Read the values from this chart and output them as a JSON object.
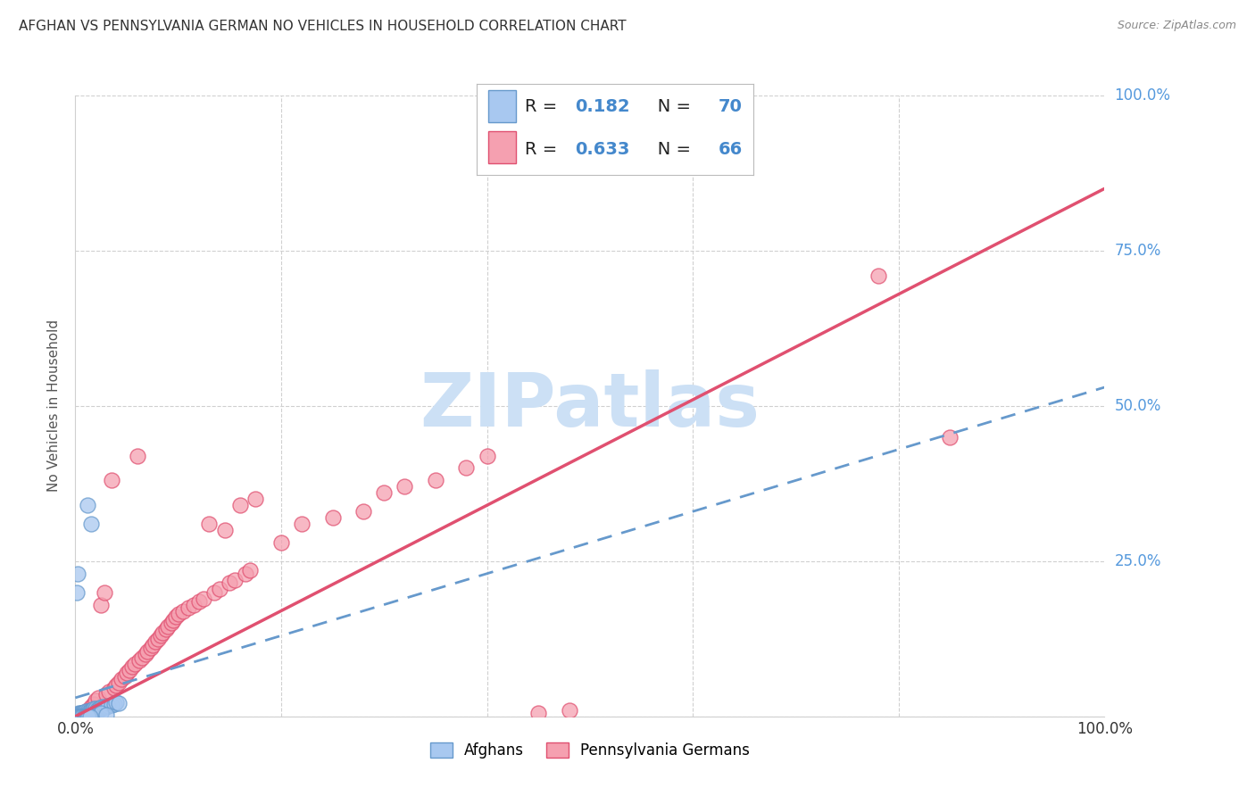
{
  "title": "AFGHAN VS PENNSYLVANIA GERMAN NO VEHICLES IN HOUSEHOLD CORRELATION CHART",
  "source": "Source: ZipAtlas.com",
  "ylabel": "No Vehicles in Household",
  "watermark": "ZIPatlas",
  "legend": {
    "afghan": {
      "R": 0.182,
      "N": 70,
      "color": "#a8c8f0",
      "line_color": "#6699cc"
    },
    "pa_german": {
      "R": 0.633,
      "N": 66,
      "color": "#f5a0b0",
      "line_color": "#e05070"
    }
  },
  "afghan_scatter": [
    [
      0.001,
      0.001
    ],
    [
      0.001,
      0.002
    ],
    [
      0.001,
      0.003
    ],
    [
      0.002,
      0.001
    ],
    [
      0.002,
      0.002
    ],
    [
      0.002,
      0.004
    ],
    [
      0.003,
      0.001
    ],
    [
      0.003,
      0.003
    ],
    [
      0.003,
      0.005
    ],
    [
      0.004,
      0.002
    ],
    [
      0.004,
      0.004
    ],
    [
      0.005,
      0.002
    ],
    [
      0.005,
      0.006
    ],
    [
      0.006,
      0.003
    ],
    [
      0.006,
      0.005
    ],
    [
      0.007,
      0.004
    ],
    [
      0.007,
      0.006
    ],
    [
      0.008,
      0.003
    ],
    [
      0.008,
      0.007
    ],
    [
      0.009,
      0.005
    ],
    [
      0.01,
      0.004
    ],
    [
      0.01,
      0.008
    ],
    [
      0.011,
      0.006
    ],
    [
      0.012,
      0.005
    ],
    [
      0.012,
      0.009
    ],
    [
      0.013,
      0.007
    ],
    [
      0.014,
      0.008
    ],
    [
      0.015,
      0.006
    ],
    [
      0.015,
      0.01
    ],
    [
      0.016,
      0.009
    ],
    [
      0.017,
      0.011
    ],
    [
      0.018,
      0.008
    ],
    [
      0.018,
      0.012
    ],
    [
      0.019,
      0.01
    ],
    [
      0.02,
      0.009
    ],
    [
      0.02,
      0.013
    ],
    [
      0.021,
      0.011
    ],
    [
      0.022,
      0.01
    ],
    [
      0.023,
      0.012
    ],
    [
      0.024,
      0.014
    ],
    [
      0.025,
      0.013
    ],
    [
      0.026,
      0.015
    ],
    [
      0.027,
      0.014
    ],
    [
      0.028,
      0.016
    ],
    [
      0.03,
      0.015
    ],
    [
      0.032,
      0.017
    ],
    [
      0.035,
      0.019
    ],
    [
      0.038,
      0.02
    ],
    [
      0.04,
      0.022
    ],
    [
      0.042,
      0.021
    ],
    [
      0.001,
      0.2
    ],
    [
      0.002,
      0.23
    ],
    [
      0.015,
      0.31
    ],
    [
      0.012,
      0.34
    ],
    [
      0.025,
      0.005
    ],
    [
      0.03,
      0.003
    ],
    [
      0.001,
      0.0
    ],
    [
      0.002,
      0.0
    ],
    [
      0.003,
      0.0
    ],
    [
      0.004,
      0.0
    ],
    [
      0.005,
      0.0
    ],
    [
      0.006,
      0.0
    ],
    [
      0.007,
      0.0
    ],
    [
      0.008,
      0.0
    ],
    [
      0.009,
      0.0
    ],
    [
      0.01,
      0.0
    ],
    [
      0.011,
      0.0
    ],
    [
      0.012,
      0.0
    ],
    [
      0.013,
      0.0
    ],
    [
      0.014,
      0.0
    ]
  ],
  "pa_scatter": [
    [
      0.012,
      0.01
    ],
    [
      0.015,
      0.015
    ],
    [
      0.018,
      0.02
    ],
    [
      0.02,
      0.025
    ],
    [
      0.022,
      0.03
    ],
    [
      0.025,
      0.18
    ],
    [
      0.028,
      0.2
    ],
    [
      0.03,
      0.035
    ],
    [
      0.033,
      0.04
    ],
    [
      0.035,
      0.38
    ],
    [
      0.038,
      0.045
    ],
    [
      0.04,
      0.05
    ],
    [
      0.042,
      0.055
    ],
    [
      0.045,
      0.06
    ],
    [
      0.048,
      0.065
    ],
    [
      0.05,
      0.07
    ],
    [
      0.053,
      0.075
    ],
    [
      0.055,
      0.08
    ],
    [
      0.058,
      0.085
    ],
    [
      0.06,
      0.42
    ],
    [
      0.062,
      0.09
    ],
    [
      0.065,
      0.095
    ],
    [
      0.068,
      0.1
    ],
    [
      0.07,
      0.105
    ],
    [
      0.073,
      0.11
    ],
    [
      0.075,
      0.115
    ],
    [
      0.078,
      0.12
    ],
    [
      0.08,
      0.125
    ],
    [
      0.083,
      0.13
    ],
    [
      0.085,
      0.135
    ],
    [
      0.088,
      0.14
    ],
    [
      0.09,
      0.145
    ],
    [
      0.093,
      0.15
    ],
    [
      0.095,
      0.155
    ],
    [
      0.098,
      0.16
    ],
    [
      0.1,
      0.165
    ],
    [
      0.105,
      0.17
    ],
    [
      0.11,
      0.175
    ],
    [
      0.115,
      0.18
    ],
    [
      0.12,
      0.185
    ],
    [
      0.125,
      0.19
    ],
    [
      0.13,
      0.31
    ],
    [
      0.135,
      0.2
    ],
    [
      0.14,
      0.205
    ],
    [
      0.145,
      0.3
    ],
    [
      0.15,
      0.215
    ],
    [
      0.155,
      0.22
    ],
    [
      0.16,
      0.34
    ],
    [
      0.165,
      0.23
    ],
    [
      0.17,
      0.235
    ],
    [
      0.175,
      0.35
    ],
    [
      0.2,
      0.28
    ],
    [
      0.22,
      0.31
    ],
    [
      0.25,
      0.32
    ],
    [
      0.28,
      0.33
    ],
    [
      0.3,
      0.36
    ],
    [
      0.32,
      0.37
    ],
    [
      0.35,
      0.38
    ],
    [
      0.38,
      0.4
    ],
    [
      0.4,
      0.42
    ],
    [
      0.45,
      0.005
    ],
    [
      0.48,
      0.01
    ],
    [
      0.78,
      0.71
    ],
    [
      0.85,
      0.45
    ],
    [
      0.01,
      0.005
    ],
    [
      0.012,
      0.008
    ]
  ],
  "xlim": [
    0.0,
    1.0
  ],
  "ylim": [
    0.0,
    1.0
  ],
  "yticks": [
    0.0,
    0.25,
    0.5,
    0.75,
    1.0
  ],
  "ytick_labels": [
    "",
    "25.0%",
    "50.0%",
    "75.0%",
    "100.0%"
  ],
  "xtick_labels": [
    "0.0%",
    "100.0%"
  ],
  "background_color": "#ffffff",
  "grid_color": "#d0d0d0",
  "title_fontsize": 11,
  "watermark_color": "#cce0f5",
  "watermark_fontsize": 60,
  "pa_trend": {
    "slope": 0.85,
    "intercept": 0.0
  },
  "afghan_trend": {
    "slope": 0.5,
    "intercept": 0.03
  }
}
